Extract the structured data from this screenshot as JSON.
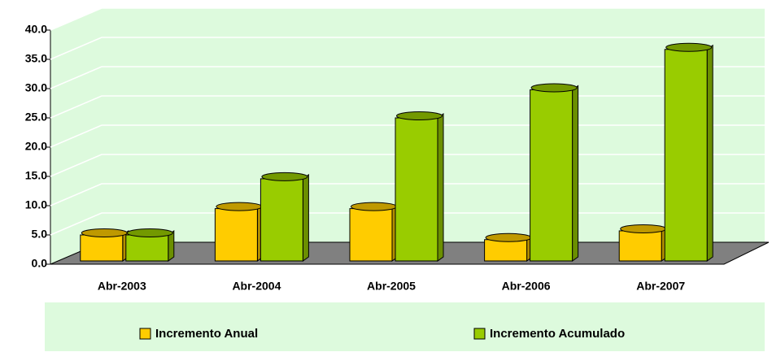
{
  "chart_data": {
    "type": "bar3d",
    "categories": [
      "Abr-2003",
      "Abr-2004",
      "Abr-2005",
      "Abr-2006",
      "Abr-2007"
    ],
    "series": [
      {
        "name": "Incremento Anual",
        "color": "#ffcc00",
        "values": [
          5.0,
          9.5,
          9.5,
          4.2,
          5.7
        ]
      },
      {
        "name": "Incremento Acumulado",
        "color": "#99cc00",
        "values": [
          5.0,
          14.6,
          25.0,
          29.8,
          36.7
        ]
      }
    ],
    "ylim": [
      0,
      40
    ],
    "yticks": [
      {
        "value": 0,
        "label": "0.0"
      },
      {
        "value": 5,
        "label": "5.0"
      },
      {
        "value": 10,
        "label": "10.0"
      },
      {
        "value": 15,
        "label": "15.0"
      },
      {
        "value": 20,
        "label": "20.0"
      },
      {
        "value": 25,
        "label": "25.0"
      },
      {
        "value": 30,
        "label": "30.0"
      },
      {
        "value": 35,
        "label": "35.0"
      },
      {
        "value": 40,
        "label": "40.0"
      }
    ],
    "grid": true,
    "legend": "bottom"
  }
}
